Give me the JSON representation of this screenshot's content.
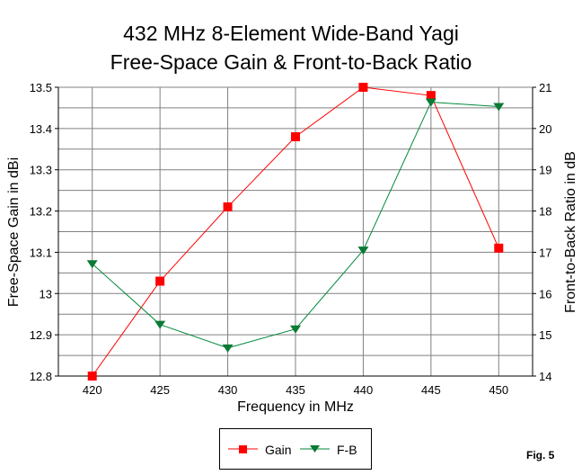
{
  "chart_data": {
    "type": "line",
    "title": [
      "432 MHz 8-Element Wide-Band Yagi",
      "Free-Space Gain & Front-to-Back Ratio"
    ],
    "xlabel": "Frequency in MHz",
    "ylabel": "Free-Space Gain in dBi",
    "y2label": "Front-to-Back Ratio in dB",
    "categories": [
      "420",
      "425",
      "430",
      "435",
      "440",
      "445",
      "450"
    ],
    "ylim": [
      12.8,
      13.5
    ],
    "yticks": [
      "12.8",
      "12.9",
      "13",
      "13.1",
      "13.2",
      "13.3",
      "13.4",
      "13.5"
    ],
    "y2lim": [
      14,
      21
    ],
    "y2ticks": [
      "14",
      "15",
      "16",
      "17",
      "18",
      "19",
      "20",
      "21"
    ],
    "grid": true,
    "series": [
      {
        "name": "Gain",
        "axis": "left",
        "color": "#ff0000",
        "marker": "square",
        "values": [
          12.8,
          13.03,
          13.21,
          13.38,
          13.5,
          13.48,
          13.11
        ]
      },
      {
        "name": "F-B",
        "axis": "right",
        "color": "#008a3a",
        "marker": "triangle-down",
        "values": [
          16.72,
          15.25,
          14.68,
          15.14,
          17.05,
          20.64,
          20.53
        ]
      }
    ],
    "legend_position": "bottom",
    "annotation": "Fig. 5"
  }
}
